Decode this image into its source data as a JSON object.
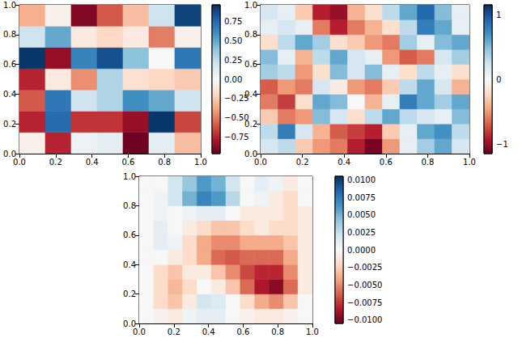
{
  "chart_data": [
    {
      "type": "heatmap",
      "xlim": [
        0,
        1
      ],
      "ylim": [
        0,
        1
      ],
      "xticks": [
        {
          "value": 0,
          "label": "0.0"
        },
        0.2,
        0.4,
        0.6,
        0.8,
        {
          "value": 1,
          "label": "1.0"
        }
      ],
      "yticks": [
        {
          "value": 0,
          "label": "0.0"
        },
        0.2,
        0.4,
        0.6,
        0.8,
        {
          "value": 1,
          "label": "1.0"
        }
      ],
      "cells": [
        [
          -0.05,
          -0.75,
          0.05,
          0.1,
          -0.95,
          0.1,
          -0.3
        ],
        [
          -0.75,
          0.75,
          -0.7,
          -0.7,
          -0.85,
          0.95,
          -0.65
        ],
        [
          -0.6,
          0.7,
          0.2,
          0.3,
          0.6,
          0.5,
          0.2
        ],
        [
          -0.75,
          -0.1,
          -0.45,
          0.3,
          -0.15,
          -0.2,
          -0.25
        ],
        [
          0.95,
          -0.85,
          0.65,
          0.85,
          0.4,
          0.0,
          0.7
        ],
        [
          0.2,
          0.5,
          -0.1,
          -0.2,
          -0.1,
          -0.5,
          -0.05
        ],
        [
          -0.35,
          -0.05,
          -0.9,
          -0.6,
          -0.3,
          0.2,
          0.9
        ]
      ],
      "colorbar": {
        "range": [
          -0.97,
          0.97
        ],
        "ticks": [
          {
            "value": -0.75,
            "label": "−0.75"
          },
          {
            "value": -0.5,
            "label": "−0.50"
          },
          {
            "value": -0.25,
            "label": "−0.25"
          },
          {
            "value": 0,
            "label": "0.00"
          },
          {
            "value": 0.25,
            "label": "0.25"
          },
          {
            "value": 0.5,
            "label": "0.50"
          },
          0.75
        ]
      }
    },
    {
      "type": "heatmap",
      "xlim": [
        0,
        1
      ],
      "ylim": [
        0,
        1
      ],
      "xticks": [
        {
          "value": 0,
          "label": "0.0"
        },
        0.2,
        0.4,
        0.6,
        0.8,
        {
          "value": 1,
          "label": "1.0"
        }
      ],
      "yticks": [
        {
          "value": 0,
          "label": "0.0"
        },
        0.2,
        0.4,
        0.6,
        0.8,
        {
          "value": 1,
          "label": "1.0"
        }
      ],
      "cells": [
        [
          0.2,
          0.3,
          -0.3,
          -0.5,
          -0.6,
          -0.9,
          -1.1,
          -0.5,
          0.1,
          0.4,
          0.6,
          0.2
        ],
        [
          0.3,
          0.8,
          0.2,
          -0.4,
          -0.7,
          -0.8,
          -0.9,
          -0.3,
          0.1,
          0.6,
          0.7,
          0.3
        ],
        [
          -0.3,
          -0.6,
          -0.5,
          0.5,
          0.2,
          -0.2,
          0.3,
          0.6,
          0.3,
          0.2,
          0.1,
          0.5
        ],
        [
          -0.6,
          -0.8,
          -0.2,
          0.6,
          0.5,
          0.0,
          -0.4,
          0.1,
          0.8,
          0.6,
          0.4,
          0.6
        ],
        [
          -0.7,
          -0.5,
          -0.6,
          0.2,
          -0.1,
          -0.5,
          -0.6,
          -0.3,
          0.3,
          0.6,
          0.2,
          -0.4
        ],
        [
          0.4,
          0.3,
          -0.5,
          -0.2,
          0.5,
          0.2,
          0.5,
          0.1,
          -0.2,
          0.3,
          0.1,
          -0.2
        ],
        [
          0.5,
          0.1,
          -0.4,
          0.3,
          0.6,
          0.2,
          0.1,
          -0.5,
          -0.7,
          -0.6,
          0.2,
          0.4
        ],
        [
          -0.2,
          0.3,
          0.6,
          0.4,
          -0.2,
          -0.3,
          -0.5,
          -0.6,
          0.4,
          0.1,
          0.5,
          0.6
        ],
        [
          0.1,
          0.2,
          0.1,
          -0.6,
          -0.9,
          -0.6,
          -0.4,
          -0.2,
          0.3,
          0.8,
          0.6,
          0.1
        ],
        [
          0.2,
          0.1,
          -0.3,
          -0.9,
          -1.0,
          -0.4,
          -0.2,
          0.3,
          0.6,
          0.9,
          0.5,
          0.1
        ]
      ],
      "colorbar": {
        "range": [
          -1.15,
          1.15
        ],
        "ticks": [
          {
            "value": -1,
            "label": "−1"
          },
          0,
          1
        ]
      }
    },
    {
      "type": "heatmap",
      "xlim": [
        0,
        1
      ],
      "ylim": [
        0,
        1
      ],
      "xticks": [
        {
          "value": 0,
          "label": "0.0"
        },
        0.2,
        0.4,
        0.6,
        0.8,
        {
          "value": 1,
          "label": "1.0"
        }
      ],
      "yticks": [
        {
          "value": 0,
          "label": "0.0"
        },
        0.2,
        0.4,
        0.6,
        0.8,
        {
          "value": 1,
          "label": "1.0"
        }
      ],
      "cells": [
        [
          0,
          -0.0005,
          -0.001,
          0.0005,
          0.001,
          0.001,
          0.0,
          -0.0005,
          -0.001,
          -0.001,
          -0.0005,
          0
        ],
        [
          0,
          -0.002,
          -0.003,
          -0.001,
          0.002,
          0.0015,
          0.0,
          -0.002,
          -0.004,
          -0.005,
          -0.003,
          0
        ],
        [
          0,
          -0.002,
          -0.0035,
          -0.002,
          0.0,
          -0.001,
          -0.003,
          -0.006,
          -0.0085,
          -0.0095,
          -0.006,
          -0.001
        ],
        [
          0,
          -0.002,
          -0.003,
          -0.001,
          -0.001,
          -0.003,
          -0.005,
          -0.007,
          -0.008,
          -0.008,
          -0.005,
          -0.001
        ],
        [
          0,
          0.0,
          -0.001,
          -0.002,
          -0.004,
          -0.006,
          -0.0065,
          -0.006,
          -0.006,
          -0.006,
          -0.004,
          -0.001
        ],
        [
          0,
          0.001,
          0.0005,
          -0.002,
          -0.004,
          -0.005,
          -0.005,
          -0.004,
          -0.004,
          -0.004,
          -0.003,
          -0.001
        ],
        [
          0,
          0.001,
          0.0,
          -0.001,
          -0.002,
          -0.003,
          -0.003,
          -0.002,
          -0.001,
          -0.002,
          -0.002,
          -0.001
        ],
        [
          0,
          0.0005,
          0.0,
          0.0005,
          0.001,
          0.001,
          0.0,
          -0.001,
          -0.001,
          -0.001,
          -0.002,
          -0.001
        ],
        [
          0,
          0.0005,
          0.002,
          0.005,
          0.007,
          0.006,
          0.003,
          0.0,
          0.0005,
          -0.001,
          -0.002,
          0
        ],
        [
          0,
          0.0,
          0.002,
          0.004,
          0.006,
          0.005,
          0.002,
          0.0,
          0.001,
          0.0005,
          -0.001,
          0
        ]
      ],
      "colorbar": {
        "range": [
          -0.0105,
          0.0105
        ],
        "ticks": [
          {
            "value": -0.01,
            "label": "−0.0100"
          },
          {
            "value": -0.0075,
            "label": "−0.0075"
          },
          {
            "value": -0.005,
            "label": "−0.0050"
          },
          {
            "value": -0.0025,
            "label": "−0.0025"
          },
          {
            "value": 0,
            "label": "0.0000"
          },
          {
            "value": 0.0025,
            "label": "0.0025"
          },
          {
            "value": 0.005,
            "label": "0.0050"
          },
          {
            "value": 0.0075,
            "label": "0.0075"
          },
          {
            "value": 0.01,
            "label": "0.0100"
          }
        ]
      }
    }
  ]
}
